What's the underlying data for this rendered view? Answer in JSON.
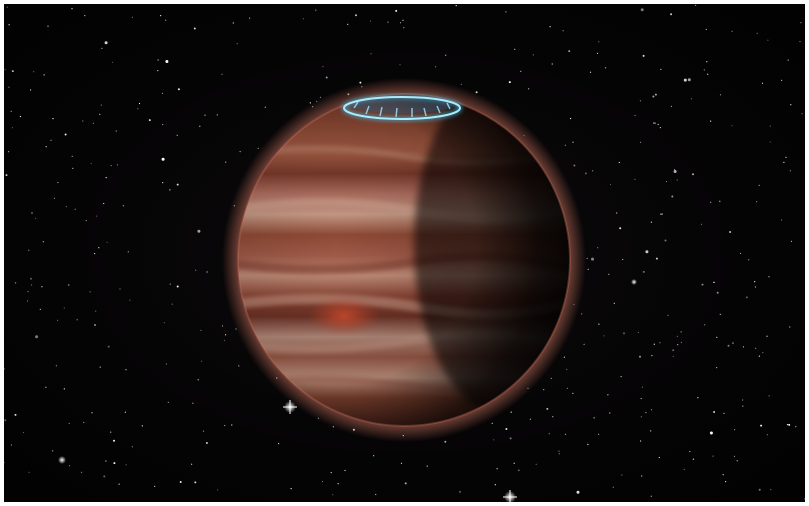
{
  "image": {
    "background_color": "#040304",
    "planet_colors": {
      "base": "#8e4a35",
      "band_light": "#c79a86",
      "band_pale": "#b78d7d",
      "band_dark": "#6e3226",
      "storm": "#c9452c",
      "atmosphere_glow": "#d07560",
      "night_side": "#0a0504"
    },
    "aurora_color": "#3fc8f0",
    "star_color": "#ffffff"
  }
}
